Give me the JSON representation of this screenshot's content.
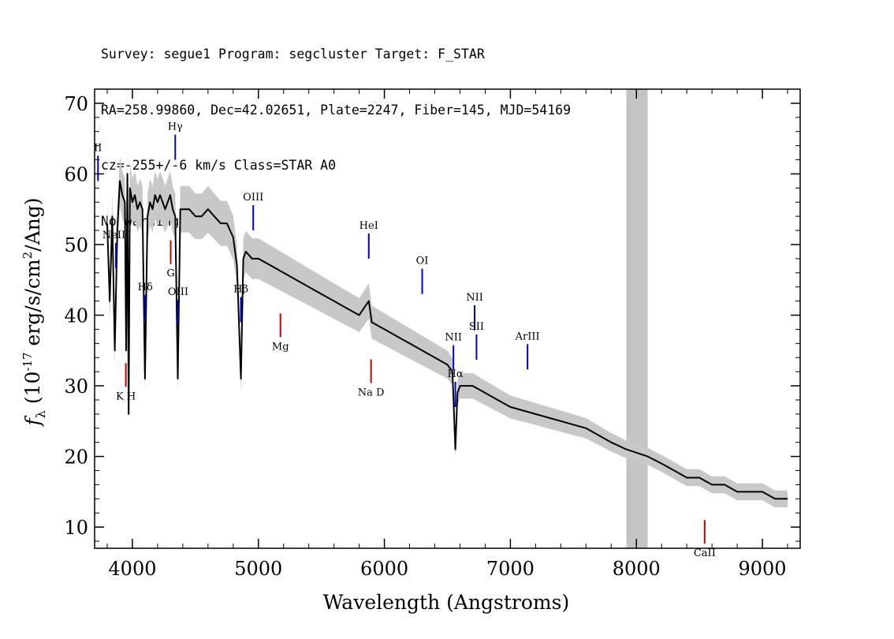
{
  "header": {
    "line1": "Survey: segue1 Program: segcluster Target: F_STAR",
    "line2": "RA=258.99860, Dec=42.02651, Plate=2247, Fiber=145, MJD=54169",
    "line3": "cz=-255+/-6 km/s Class=STAR A0",
    "line4": "No warnings."
  },
  "colors": {
    "flux": "#000000",
    "error_band": "#c8c8c8",
    "emission_marker": "#0000cc",
    "absorption_marker": "#cc0000",
    "masked_region": "#c4c4c4"
  },
  "chart_data": {
    "type": "line",
    "xlabel": "Wavelength (Angstroms)",
    "ylabel": "f_λ (10^-17 erg/s/cm^2/Ang)",
    "xlim": [
      3700,
      9300
    ],
    "ylim": [
      7,
      72
    ],
    "xticks": [
      4000,
      5000,
      6000,
      7000,
      8000,
      9000
    ],
    "yticks": [
      10,
      20,
      30,
      40,
      50,
      60,
      70
    ],
    "grid": false,
    "masked_region": [
      7920,
      8090
    ],
    "series": [
      {
        "x": [
          3800,
          3820,
          3840,
          3860,
          3880,
          3900,
          3920,
          3940,
          3950,
          3960,
          3970,
          3980,
          4000,
          4020,
          4040,
          4060,
          4080,
          4100,
          4120,
          4140,
          4160,
          4180,
          4200,
          4220,
          4240,
          4260,
          4280,
          4300,
          4320,
          4340,
          4360,
          4380,
          4400,
          4450,
          4500,
          4550,
          4600,
          4650,
          4700,
          4750,
          4800,
          4830,
          4861,
          4880,
          4900,
          4950,
          5000,
          5100,
          5200,
          5300,
          5400,
          5500,
          5600,
          5700,
          5800,
          5876,
          5900,
          6000,
          6100,
          6200,
          6300,
          6400,
          6500,
          6540,
          6563,
          6580,
          6600,
          6700,
          6800,
          6900,
          7000,
          7200,
          7400,
          7600,
          7800,
          7920,
          8090,
          8200,
          8300,
          8400,
          8500,
          8600,
          8700,
          8800,
          8900,
          9000,
          9100,
          9200
        ],
        "y": [
          53,
          42,
          54,
          35,
          52,
          59,
          57,
          56,
          35,
          60,
          26,
          58,
          56,
          57,
          55,
          56,
          55,
          31,
          54,
          56,
          55,
          57,
          56,
          57,
          56,
          55,
          56,
          57,
          55,
          54,
          31,
          55,
          55,
          55,
          54,
          54,
          55,
          54,
          53,
          53,
          51,
          47,
          31,
          48,
          49,
          48,
          48,
          47,
          46,
          45,
          44,
          43,
          42,
          41,
          40,
          42,
          39,
          38,
          37,
          36,
          35,
          34,
          33,
          32,
          21,
          29,
          30,
          30,
          29,
          28,
          27,
          26,
          25,
          24,
          22,
          21,
          20,
          19,
          18,
          17,
          17,
          16,
          16,
          15,
          15,
          15,
          14,
          14
        ]
      }
    ],
    "annotations": {
      "emission": [
        {
          "label": "NeIII",
          "wavelength": 3869
        },
        {
          "label": "Hδ",
          "wavelength": 4102
        },
        {
          "label": "Hγ",
          "wavelength": 4340
        },
        {
          "label": "OIII",
          "wavelength": 4363
        },
        {
          "label": "II",
          "wavelength": 3727
        },
        {
          "label": "Hβ",
          "wavelength": 4861
        },
        {
          "label": "OIII",
          "wavelength": 4959
        },
        {
          "label": "HeI",
          "wavelength": 5876
        },
        {
          "label": "OI",
          "wavelength": 6300
        },
        {
          "label": "NII",
          "wavelength": 6548
        },
        {
          "label": "Hα",
          "wavelength": 6563
        },
        {
          "label": "NII",
          "wavelength": 6716
        },
        {
          "label": "SII",
          "wavelength": 6731
        },
        {
          "label": "ArIII",
          "wavelength": 7136
        }
      ],
      "absorption": [
        {
          "label": "K H",
          "wavelength": 3948
        },
        {
          "label": "G",
          "wavelength": 4304
        },
        {
          "label": "Mg",
          "wavelength": 5175
        },
        {
          "label": "Na D",
          "wavelength": 5894
        },
        {
          "label": "CaII",
          "wavelength": 8542
        }
      ]
    }
  }
}
